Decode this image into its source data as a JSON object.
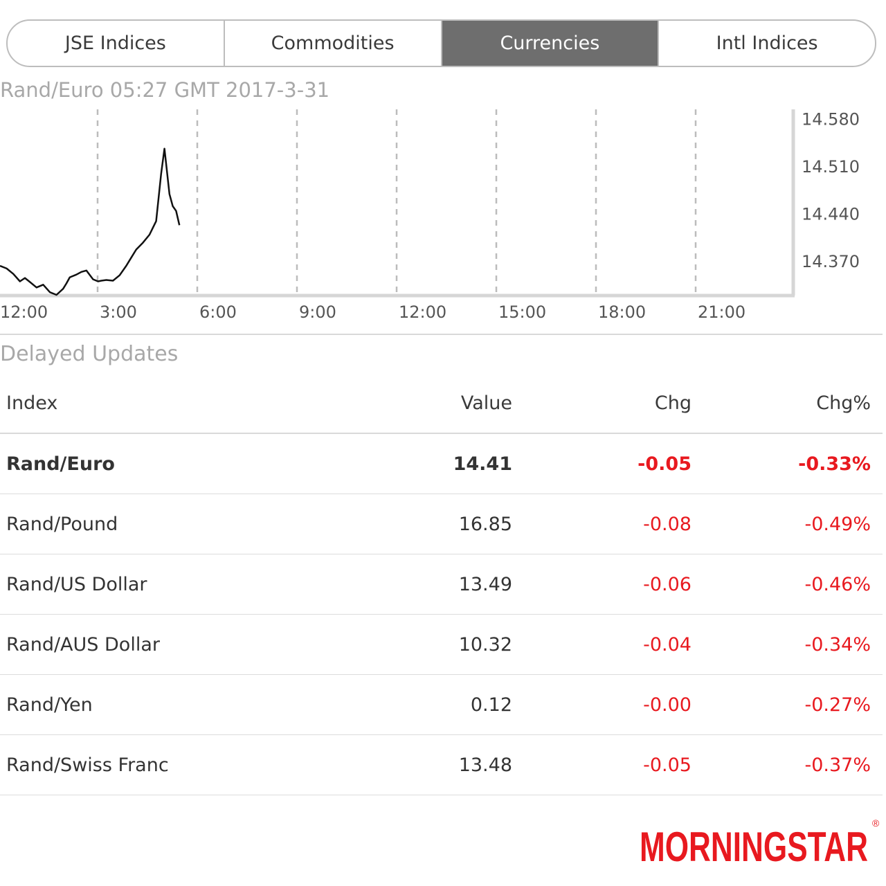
{
  "tabs": [
    {
      "label": "JSE Indices",
      "active": false
    },
    {
      "label": "Commodities",
      "active": false
    },
    {
      "label": "Currencies",
      "active": true
    },
    {
      "label": "Intl Indices",
      "active": false
    }
  ],
  "chart_header": "Rand/Euro 05:27 GMT 2017-3-31",
  "delayed_label": "Delayed Updates",
  "table": {
    "headers": {
      "index": "Index",
      "value": "Value",
      "chg": "Chg",
      "chg_pct": "Chg%"
    },
    "rows": [
      {
        "index": "Rand/Euro",
        "value": "14.41",
        "chg": "-0.05",
        "chg_pct": "-0.33%"
      },
      {
        "index": "Rand/Pound",
        "value": "16.85",
        "chg": "-0.08",
        "chg_pct": "-0.49%"
      },
      {
        "index": "Rand/US Dollar",
        "value": "13.49",
        "chg": "-0.06",
        "chg_pct": "-0.46%"
      },
      {
        "index": "Rand/AUS Dollar",
        "value": "10.32",
        "chg": "-0.04",
        "chg_pct": "-0.34%"
      },
      {
        "index": "Rand/Yen",
        "value": "0.12",
        "chg": "-0.00",
        "chg_pct": "-0.27%"
      },
      {
        "index": "Rand/Swiss Franc",
        "value": "13.48",
        "chg": "-0.05",
        "chg_pct": "-0.37%"
      }
    ]
  },
  "colors": {
    "negative": "#e8191f",
    "brand": "#e8191f",
    "tab_active_bg": "#6e6e6e"
  },
  "logo": {
    "text": "MORNINGSTAR",
    "registered": "®"
  },
  "chart_data": {
    "type": "line",
    "title": "Rand/Euro 05:27 GMT 2017-3-31",
    "x_tick_labels": [
      "12:00",
      "3:00",
      "6:00",
      "9:00",
      "12:00",
      "15:00",
      "18:00",
      "21:00"
    ],
    "xlim": [
      0,
      24
    ],
    "y_tick_labels": [
      "14.580",
      "14.510",
      "14.440",
      "14.370"
    ],
    "y_ticks": [
      14.58,
      14.51,
      14.44,
      14.37
    ],
    "ylim": [
      14.32,
      14.595
    ],
    "grid": "vertical-dashed",
    "series": [
      {
        "x": [
          0,
          0.2,
          0.4,
          0.6,
          0.75,
          0.9,
          1.1,
          1.3,
          1.5,
          1.7,
          1.9,
          2.0,
          2.1,
          2.3,
          2.45,
          2.6,
          2.8,
          2.95,
          3.05,
          3.2,
          3.4,
          3.6,
          3.8,
          3.95,
          4.1,
          4.3,
          4.5,
          4.6,
          4.7,
          4.85,
          4.95,
          5.1,
          5.2,
          5.3,
          5.4
        ],
        "y": [
          14.364,
          14.36,
          14.352,
          14.341,
          14.346,
          14.34,
          14.332,
          14.336,
          14.325,
          14.321,
          14.33,
          14.338,
          14.347,
          14.351,
          14.355,
          14.357,
          14.344,
          14.341,
          14.342,
          14.343,
          14.342,
          14.35,
          14.364,
          14.376,
          14.388,
          14.398,
          14.41,
          14.42,
          14.43,
          14.5,
          14.537,
          14.47,
          14.452,
          14.445,
          14.424
        ]
      }
    ]
  }
}
